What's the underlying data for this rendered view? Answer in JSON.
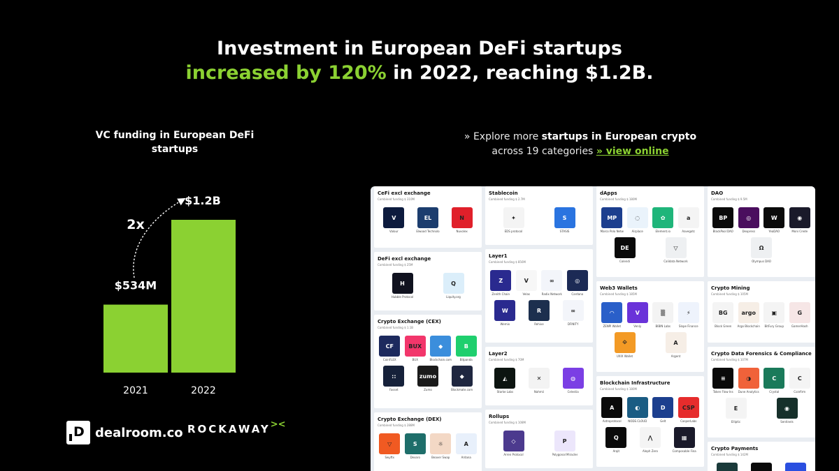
{
  "headline": {
    "line1": "Investment in European DeFi startups",
    "highlight": "increased by 120%",
    "rest": " in 2022, reaching $1.2B."
  },
  "chart_data": {
    "type": "bar",
    "title": "VC funding in European DeFi startups",
    "categories": [
      "2021",
      "2022"
    ],
    "values": [
      534,
      1200
    ],
    "unit": "M",
    "data_labels": [
      "$534M",
      "$1.2B"
    ],
    "annotation": "2x",
    "bar_color": "#8bd132",
    "ylim": [
      0,
      1300
    ],
    "grid": false,
    "legend": "none"
  },
  "explore": {
    "prefix": "» Explore more ",
    "bold": "startups in European crypto",
    "line2": "across 19 categories ",
    "link": "» view online"
  },
  "footer": {
    "dealroom_mark": "D",
    "dealroom_name": "dealroom.co",
    "rockaway_name": "ROCKAWAY",
    "rockaway_mark": "><"
  },
  "market_map": {
    "columns": [
      [
        {
          "title": "CeFi excl exchange",
          "funding": "Combined funding $ 310M",
          "h": 88,
          "logos": [
            {
              "t": "V",
              "c": "#0d1b3e",
              "l": "Valour"
            },
            {
              "t": "EL",
              "c": "#1c3d6e",
              "l": "Elwood Technolo"
            },
            {
              "t": "N",
              "c": "#e0202a",
              "l": "Nuvolex"
            }
          ]
        },
        {
          "title": "DeFi excl exchange",
          "funding": "Combined funding $ 25M",
          "h": 84,
          "logos": [
            {
              "t": "H",
              "c": "#10121f",
              "l": "Hubble Protocol"
            },
            {
              "t": "Q",
              "c": "#dbeefa",
              "l": "Liquity.org"
            }
          ]
        },
        {
          "title": "Crypto Exchange (CEX)",
          "funding": "Combined funding $ 1.1B",
          "h": 134,
          "logos": [
            {
              "t": "CF",
              "c": "#1d2a5e",
              "l": "CoinFLEX"
            },
            {
              "t": "BUX",
              "c": "#f2366b",
              "l": "BUX"
            },
            {
              "t": "◆",
              "c": "#3b8edc",
              "l": "Blockchain.com"
            },
            {
              "t": "B",
              "c": "#1fcf6e",
              "l": "Bitpanda"
            },
            {
              "t": "::",
              "c": "#16213a",
              "l": "Fasset"
            },
            {
              "t": "zumo",
              "c": "#1a1a1a",
              "l": "Zumo"
            },
            {
              "t": "◆",
              "c": "#1f2740",
              "l": "Blockmate.com"
            }
          ]
        },
        {
          "title": "Crypto Exchange (DEX)",
          "funding": "Combined funding $ 288M",
          "h": 88,
          "logos": [
            {
              "t": "▽",
              "c": "#f05a22",
              "l": "Swyftx"
            },
            {
              "t": "S",
              "c": "#1e6e6a",
              "l": "Dexaro"
            },
            {
              "t": "☼",
              "c": "#f3d8c5",
              "l": "Beaver Swap"
            },
            {
              "t": "A",
              "c": "#e8f0fb",
              "l": "Ardana"
            }
          ]
        }
      ],
      [
        {
          "title": "Stablecoin",
          "funding": "Combined funding $ 2.7M",
          "h": 84,
          "logos": [
            {
              "t": "✦",
              "c": "#f4f4f4",
              "l": "EDS protocol"
            },
            {
              "t": "S",
              "c": "#2a74e0",
              "l": "STASIS"
            }
          ]
        },
        {
          "title": "Layer1",
          "funding": "Combined funding $ 856M",
          "h": 134,
          "logos": [
            {
              "t": "Z",
              "c": "#2a2a8f",
              "l": "Zenith Chain"
            },
            {
              "t": "V",
              "c": "#f7f7f7",
              "l": "Velas"
            },
            {
              "t": "∞",
              "c": "#f3f5fa",
              "l": "Radix Network"
            },
            {
              "t": "◎",
              "c": "#1c2a55",
              "l": "Cardano"
            },
            {
              "t": "W",
              "c": "#2a2a8f",
              "l": "Wemix"
            },
            {
              "t": "R",
              "c": "#1c2f4e",
              "l": "Rehive"
            },
            {
              "t": "∞",
              "c": "#f3f5fa",
              "l": "DFINITY"
            }
          ]
        },
        {
          "title": "Layer2",
          "funding": "Combined funding $ 70M",
          "h": 84,
          "logos": [
            {
              "t": "◭",
              "c": "#0c1410",
              "l": "Starke Labs"
            },
            {
              "t": "✕",
              "c": "#f3f3f3",
              "l": "Nahmii"
            },
            {
              "t": "◍",
              "c": "#7b3fe4",
              "l": "Celestia"
            }
          ]
        },
        {
          "title": "Rollups",
          "funding": "Combined funding $ 108M",
          "h": 84,
          "logos": [
            {
              "t": "◇",
              "c": "#4c3a8e",
              "l": "Arren Protocol"
            },
            {
              "t": "P",
              "c": "#ece6fb",
              "l": "Polygonal Miracles"
            }
          ]
        }
      ],
      [
        {
          "title": "dApps",
          "funding": "Combined funding $ 180M",
          "h": 130,
          "logos": [
            {
              "t": "MP",
              "c": "#1c3e8e",
              "l": "Marco Polo Netw"
            },
            {
              "t": "◌",
              "c": "#eaf3fb",
              "l": "Airplace"
            },
            {
              "t": "✿",
              "c": "#1fb57a",
              "l": "Element.io"
            },
            {
              "t": "a",
              "c": "#f4f4f4",
              "l": "Aavegotc"
            },
            {
              "t": "DE",
              "c": "#0a0a0a",
              "l": "Colendi"
            },
            {
              "t": "▽",
              "c": "#eef0f2",
              "l": "Calidata Network"
            }
          ]
        },
        {
          "title": "Web3 Wallets",
          "funding": "Combined funding $ 185M",
          "h": 130,
          "logos": [
            {
              "t": "◠",
              "c": "#2a5fc9",
              "l": "ZENPI Wallet"
            },
            {
              "t": "V",
              "c": "#6a33d9",
              "l": "Venly"
            },
            {
              "t": "▒",
              "c": "#f3f3f3",
              "l": "BIBIN Labs"
            },
            {
              "t": "⚡",
              "c": "#eef3fc",
              "l": "Slope Finance"
            },
            {
              "t": "⟐",
              "c": "#f39a25",
              "l": "UXIX Wallet"
            },
            {
              "t": "A",
              "c": "#f6eee6",
              "l": "Argent"
            }
          ]
        },
        {
          "title": "Blockchain Infrastructure",
          "funding": "Combined funding $ 180M",
          "h": 130,
          "logos": [
            {
              "t": "A",
              "c": "#0a0a0a",
              "l": "Astroprotocol"
            },
            {
              "t": "◐",
              "c": "#1a5c83",
              "l": "NODE.CLOUD"
            },
            {
              "t": "D",
              "c": "#1c3f8e",
              "l": "Gelt"
            },
            {
              "t": "CSP",
              "c": "#e62c2c",
              "l": "CasperLabs"
            },
            {
              "t": "Q",
              "c": "#0a0a0a",
              "l": "Arqit"
            },
            {
              "t": "⋀",
              "c": "#f4f4f4",
              "l": "Aleph Zero"
            },
            {
              "t": "▦",
              "c": "#1a1a2a",
              "l": "Composable Fina"
            }
          ]
        }
      ],
      [
        {
          "title": "DAO",
          "funding": "Combined funding $ 9.5M",
          "h": 130,
          "logos": [
            {
              "t": "BP",
              "c": "#0a0a0a",
              "l": "BlackPool DAO"
            },
            {
              "t": "◎",
              "c": "#4a0e5e",
              "l": "Dexpress"
            },
            {
              "t": "W",
              "c": "#0a0a0a",
              "l": "YeaDAO"
            },
            {
              "t": "◉",
              "c": "#1a1a2a",
              "l": "Moni Crede"
            },
            {
              "t": "Ω",
              "c": "#eef0f2",
              "l": "Olympus DAO"
            }
          ]
        },
        {
          "title": "Crypto Mining",
          "funding": "Combined funding $ 105M",
          "h": 88,
          "logos": [
            {
              "t": "BG",
              "c": "#f4f4f4",
              "l": "Block Green"
            },
            {
              "t": "argo",
              "c": "#f6eee6",
              "l": "Argo Blockchain"
            },
            {
              "t": "▣",
              "c": "#f4f4f4",
              "l": "BitFury Group"
            },
            {
              "t": "G",
              "c": "#f6e6e6",
              "l": "GamerHash"
            }
          ]
        },
        {
          "title": "Crypto Data Forensics & Compliance",
          "funding": "Combined funding $ 107M",
          "h": 130,
          "logos": [
            {
              "t": "≡",
              "c": "#0a0a0a",
              "l": "Token Flow Ins"
            },
            {
              "t": "◑",
              "c": "#f0623a",
              "l": "Dune Analytics"
            },
            {
              "t": "C",
              "c": "#1a7a5a",
              "l": "Crystal"
            },
            {
              "t": "C",
              "c": "#f4f4f4",
              "l": "Coinfirm"
            },
            {
              "t": "E",
              "c": "#f4f4f4",
              "l": "Elliptic"
            },
            {
              "t": "◉",
              "c": "#16302a",
              "l": "Sentinels"
            }
          ]
        },
        {
          "title": "Crypto Payments",
          "funding": "Combined funding $ 142M",
          "h": 60,
          "logos": [
            {
              "t": "✕",
              "c": "#1a3a3a",
              "l": ""
            },
            {
              "t": "b",
              "c": "#0a0a0a",
              "l": ""
            },
            {
              "t": "Z",
              "c": "#2a4fe0",
              "l": ""
            }
          ]
        }
      ]
    ]
  }
}
